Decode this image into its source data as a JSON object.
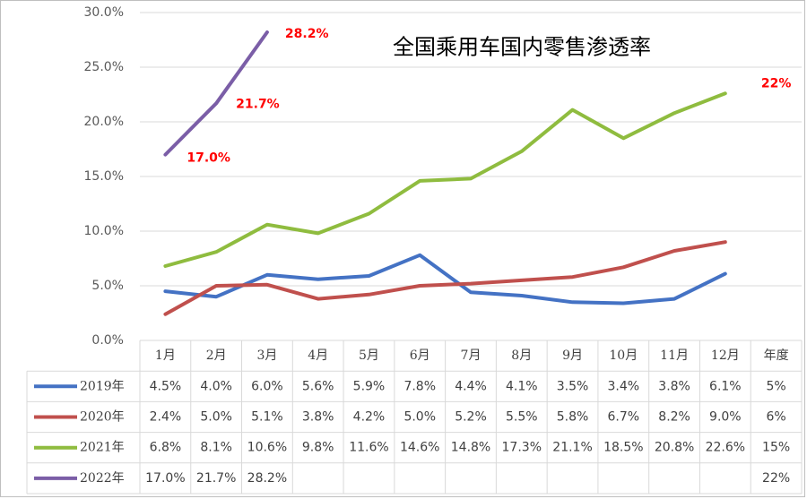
{
  "chart_data": {
    "type": "line",
    "title": "全国乘用车国内零售渗透率",
    "categories": [
      "1月",
      "2月",
      "3月",
      "4月",
      "5月",
      "6月",
      "7月",
      "8月",
      "9月",
      "10月",
      "11月",
      "12月",
      "年度"
    ],
    "ylim": [
      0,
      30
    ],
    "y_ticks": [
      "0.0%",
      "5.0%",
      "10.0%",
      "15.0%",
      "20.0%",
      "25.0%",
      "30.0%"
    ],
    "grid": true,
    "legend": "data-table-left",
    "series": [
      {
        "name": "2019年",
        "color": "#4472c4",
        "values": [
          4.5,
          4.0,
          6.0,
          5.6,
          5.9,
          7.8,
          4.4,
          4.1,
          3.5,
          3.4,
          3.8,
          6.1,
          5
        ],
        "labels": [
          "4.5%",
          "4.0%",
          "6.0%",
          "5.6%",
          "5.9%",
          "7.8%",
          "4.4%",
          "4.1%",
          "3.5%",
          "3.4%",
          "3.8%",
          "6.1%",
          "5%"
        ]
      },
      {
        "name": "2020年",
        "color": "#c0504d",
        "values": [
          2.4,
          5.0,
          5.1,
          3.8,
          4.2,
          5.0,
          5.2,
          5.5,
          5.8,
          6.7,
          8.2,
          9.0,
          6
        ],
        "labels": [
          "2.4%",
          "5.0%",
          "5.1%",
          "3.8%",
          "4.2%",
          "5.0%",
          "5.2%",
          "5.5%",
          "5.8%",
          "6.7%",
          "8.2%",
          "9.0%",
          "6%"
        ]
      },
      {
        "name": "2021年",
        "color": "#8fbc3f",
        "values": [
          6.8,
          8.1,
          10.6,
          9.8,
          11.6,
          14.6,
          14.8,
          17.3,
          21.1,
          18.5,
          20.8,
          22.6,
          15
        ],
        "labels": [
          "6.8%",
          "8.1%",
          "10.6%",
          "9.8%",
          "11.6%",
          "14.6%",
          "14.8%",
          "17.3%",
          "21.1%",
          "18.5%",
          "20.8%",
          "22.6%",
          "15%"
        ]
      },
      {
        "name": "2022年",
        "color": "#7b5ea7",
        "values": [
          17.0,
          21.7,
          28.2,
          null,
          null,
          null,
          null,
          null,
          null,
          null,
          null,
          null,
          22
        ],
        "labels": [
          "17.0%",
          "21.7%",
          "28.2%",
          "",
          "",
          "",
          "",
          "",
          "",
          "",
          "",
          "",
          "22%"
        ]
      }
    ],
    "annotations": [
      "17.0%",
      "21.7%",
      "28.2%",
      "22%"
    ]
  }
}
